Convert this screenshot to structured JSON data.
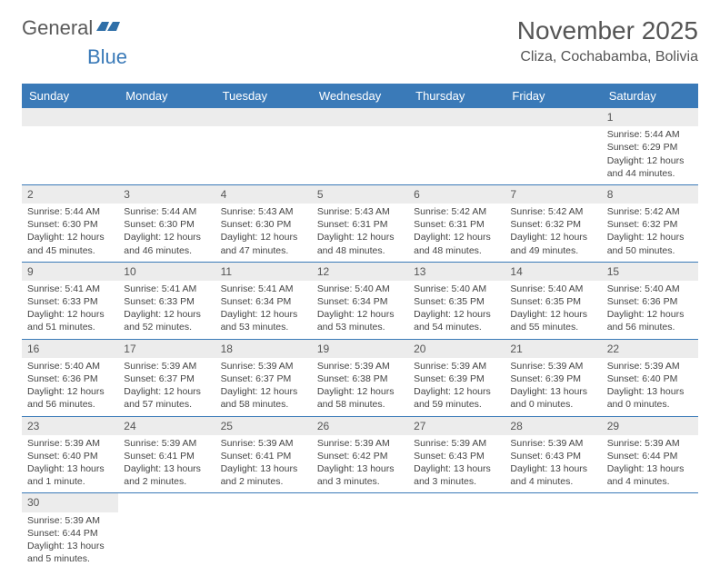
{
  "logo": {
    "text1": "General",
    "text2": "Blue"
  },
  "header": {
    "title": "November 2025",
    "location": "Cliza, Cochabamba, Bolivia"
  },
  "colors": {
    "header_bg": "#3a7ab8",
    "header_text": "#ffffff",
    "daynum_bg": "#ececec",
    "border": "#3a7ab8",
    "text": "#444444"
  },
  "weekdays": [
    "Sunday",
    "Monday",
    "Tuesday",
    "Wednesday",
    "Thursday",
    "Friday",
    "Saturday"
  ],
  "weeks": [
    [
      null,
      null,
      null,
      null,
      null,
      null,
      {
        "n": "1",
        "sr": "Sunrise: 5:44 AM",
        "ss": "Sunset: 6:29 PM",
        "dl": "Daylight: 12 hours and 44 minutes."
      }
    ],
    [
      {
        "n": "2",
        "sr": "Sunrise: 5:44 AM",
        "ss": "Sunset: 6:30 PM",
        "dl": "Daylight: 12 hours and 45 minutes."
      },
      {
        "n": "3",
        "sr": "Sunrise: 5:44 AM",
        "ss": "Sunset: 6:30 PM",
        "dl": "Daylight: 12 hours and 46 minutes."
      },
      {
        "n": "4",
        "sr": "Sunrise: 5:43 AM",
        "ss": "Sunset: 6:30 PM",
        "dl": "Daylight: 12 hours and 47 minutes."
      },
      {
        "n": "5",
        "sr": "Sunrise: 5:43 AM",
        "ss": "Sunset: 6:31 PM",
        "dl": "Daylight: 12 hours and 48 minutes."
      },
      {
        "n": "6",
        "sr": "Sunrise: 5:42 AM",
        "ss": "Sunset: 6:31 PM",
        "dl": "Daylight: 12 hours and 48 minutes."
      },
      {
        "n": "7",
        "sr": "Sunrise: 5:42 AM",
        "ss": "Sunset: 6:32 PM",
        "dl": "Daylight: 12 hours and 49 minutes."
      },
      {
        "n": "8",
        "sr": "Sunrise: 5:42 AM",
        "ss": "Sunset: 6:32 PM",
        "dl": "Daylight: 12 hours and 50 minutes."
      }
    ],
    [
      {
        "n": "9",
        "sr": "Sunrise: 5:41 AM",
        "ss": "Sunset: 6:33 PM",
        "dl": "Daylight: 12 hours and 51 minutes."
      },
      {
        "n": "10",
        "sr": "Sunrise: 5:41 AM",
        "ss": "Sunset: 6:33 PM",
        "dl": "Daylight: 12 hours and 52 minutes."
      },
      {
        "n": "11",
        "sr": "Sunrise: 5:41 AM",
        "ss": "Sunset: 6:34 PM",
        "dl": "Daylight: 12 hours and 53 minutes."
      },
      {
        "n": "12",
        "sr": "Sunrise: 5:40 AM",
        "ss": "Sunset: 6:34 PM",
        "dl": "Daylight: 12 hours and 53 minutes."
      },
      {
        "n": "13",
        "sr": "Sunrise: 5:40 AM",
        "ss": "Sunset: 6:35 PM",
        "dl": "Daylight: 12 hours and 54 minutes."
      },
      {
        "n": "14",
        "sr": "Sunrise: 5:40 AM",
        "ss": "Sunset: 6:35 PM",
        "dl": "Daylight: 12 hours and 55 minutes."
      },
      {
        "n": "15",
        "sr": "Sunrise: 5:40 AM",
        "ss": "Sunset: 6:36 PM",
        "dl": "Daylight: 12 hours and 56 minutes."
      }
    ],
    [
      {
        "n": "16",
        "sr": "Sunrise: 5:40 AM",
        "ss": "Sunset: 6:36 PM",
        "dl": "Daylight: 12 hours and 56 minutes."
      },
      {
        "n": "17",
        "sr": "Sunrise: 5:39 AM",
        "ss": "Sunset: 6:37 PM",
        "dl": "Daylight: 12 hours and 57 minutes."
      },
      {
        "n": "18",
        "sr": "Sunrise: 5:39 AM",
        "ss": "Sunset: 6:37 PM",
        "dl": "Daylight: 12 hours and 58 minutes."
      },
      {
        "n": "19",
        "sr": "Sunrise: 5:39 AM",
        "ss": "Sunset: 6:38 PM",
        "dl": "Daylight: 12 hours and 58 minutes."
      },
      {
        "n": "20",
        "sr": "Sunrise: 5:39 AM",
        "ss": "Sunset: 6:39 PM",
        "dl": "Daylight: 12 hours and 59 minutes."
      },
      {
        "n": "21",
        "sr": "Sunrise: 5:39 AM",
        "ss": "Sunset: 6:39 PM",
        "dl": "Daylight: 13 hours and 0 minutes."
      },
      {
        "n": "22",
        "sr": "Sunrise: 5:39 AM",
        "ss": "Sunset: 6:40 PM",
        "dl": "Daylight: 13 hours and 0 minutes."
      }
    ],
    [
      {
        "n": "23",
        "sr": "Sunrise: 5:39 AM",
        "ss": "Sunset: 6:40 PM",
        "dl": "Daylight: 13 hours and 1 minute."
      },
      {
        "n": "24",
        "sr": "Sunrise: 5:39 AM",
        "ss": "Sunset: 6:41 PM",
        "dl": "Daylight: 13 hours and 2 minutes."
      },
      {
        "n": "25",
        "sr": "Sunrise: 5:39 AM",
        "ss": "Sunset: 6:41 PM",
        "dl": "Daylight: 13 hours and 2 minutes."
      },
      {
        "n": "26",
        "sr": "Sunrise: 5:39 AM",
        "ss": "Sunset: 6:42 PM",
        "dl": "Daylight: 13 hours and 3 minutes."
      },
      {
        "n": "27",
        "sr": "Sunrise: 5:39 AM",
        "ss": "Sunset: 6:43 PM",
        "dl": "Daylight: 13 hours and 3 minutes."
      },
      {
        "n": "28",
        "sr": "Sunrise: 5:39 AM",
        "ss": "Sunset: 6:43 PM",
        "dl": "Daylight: 13 hours and 4 minutes."
      },
      {
        "n": "29",
        "sr": "Sunrise: 5:39 AM",
        "ss": "Sunset: 6:44 PM",
        "dl": "Daylight: 13 hours and 4 minutes."
      }
    ],
    [
      {
        "n": "30",
        "sr": "Sunrise: 5:39 AM",
        "ss": "Sunset: 6:44 PM",
        "dl": "Daylight: 13 hours and 5 minutes."
      },
      null,
      null,
      null,
      null,
      null,
      null
    ]
  ]
}
